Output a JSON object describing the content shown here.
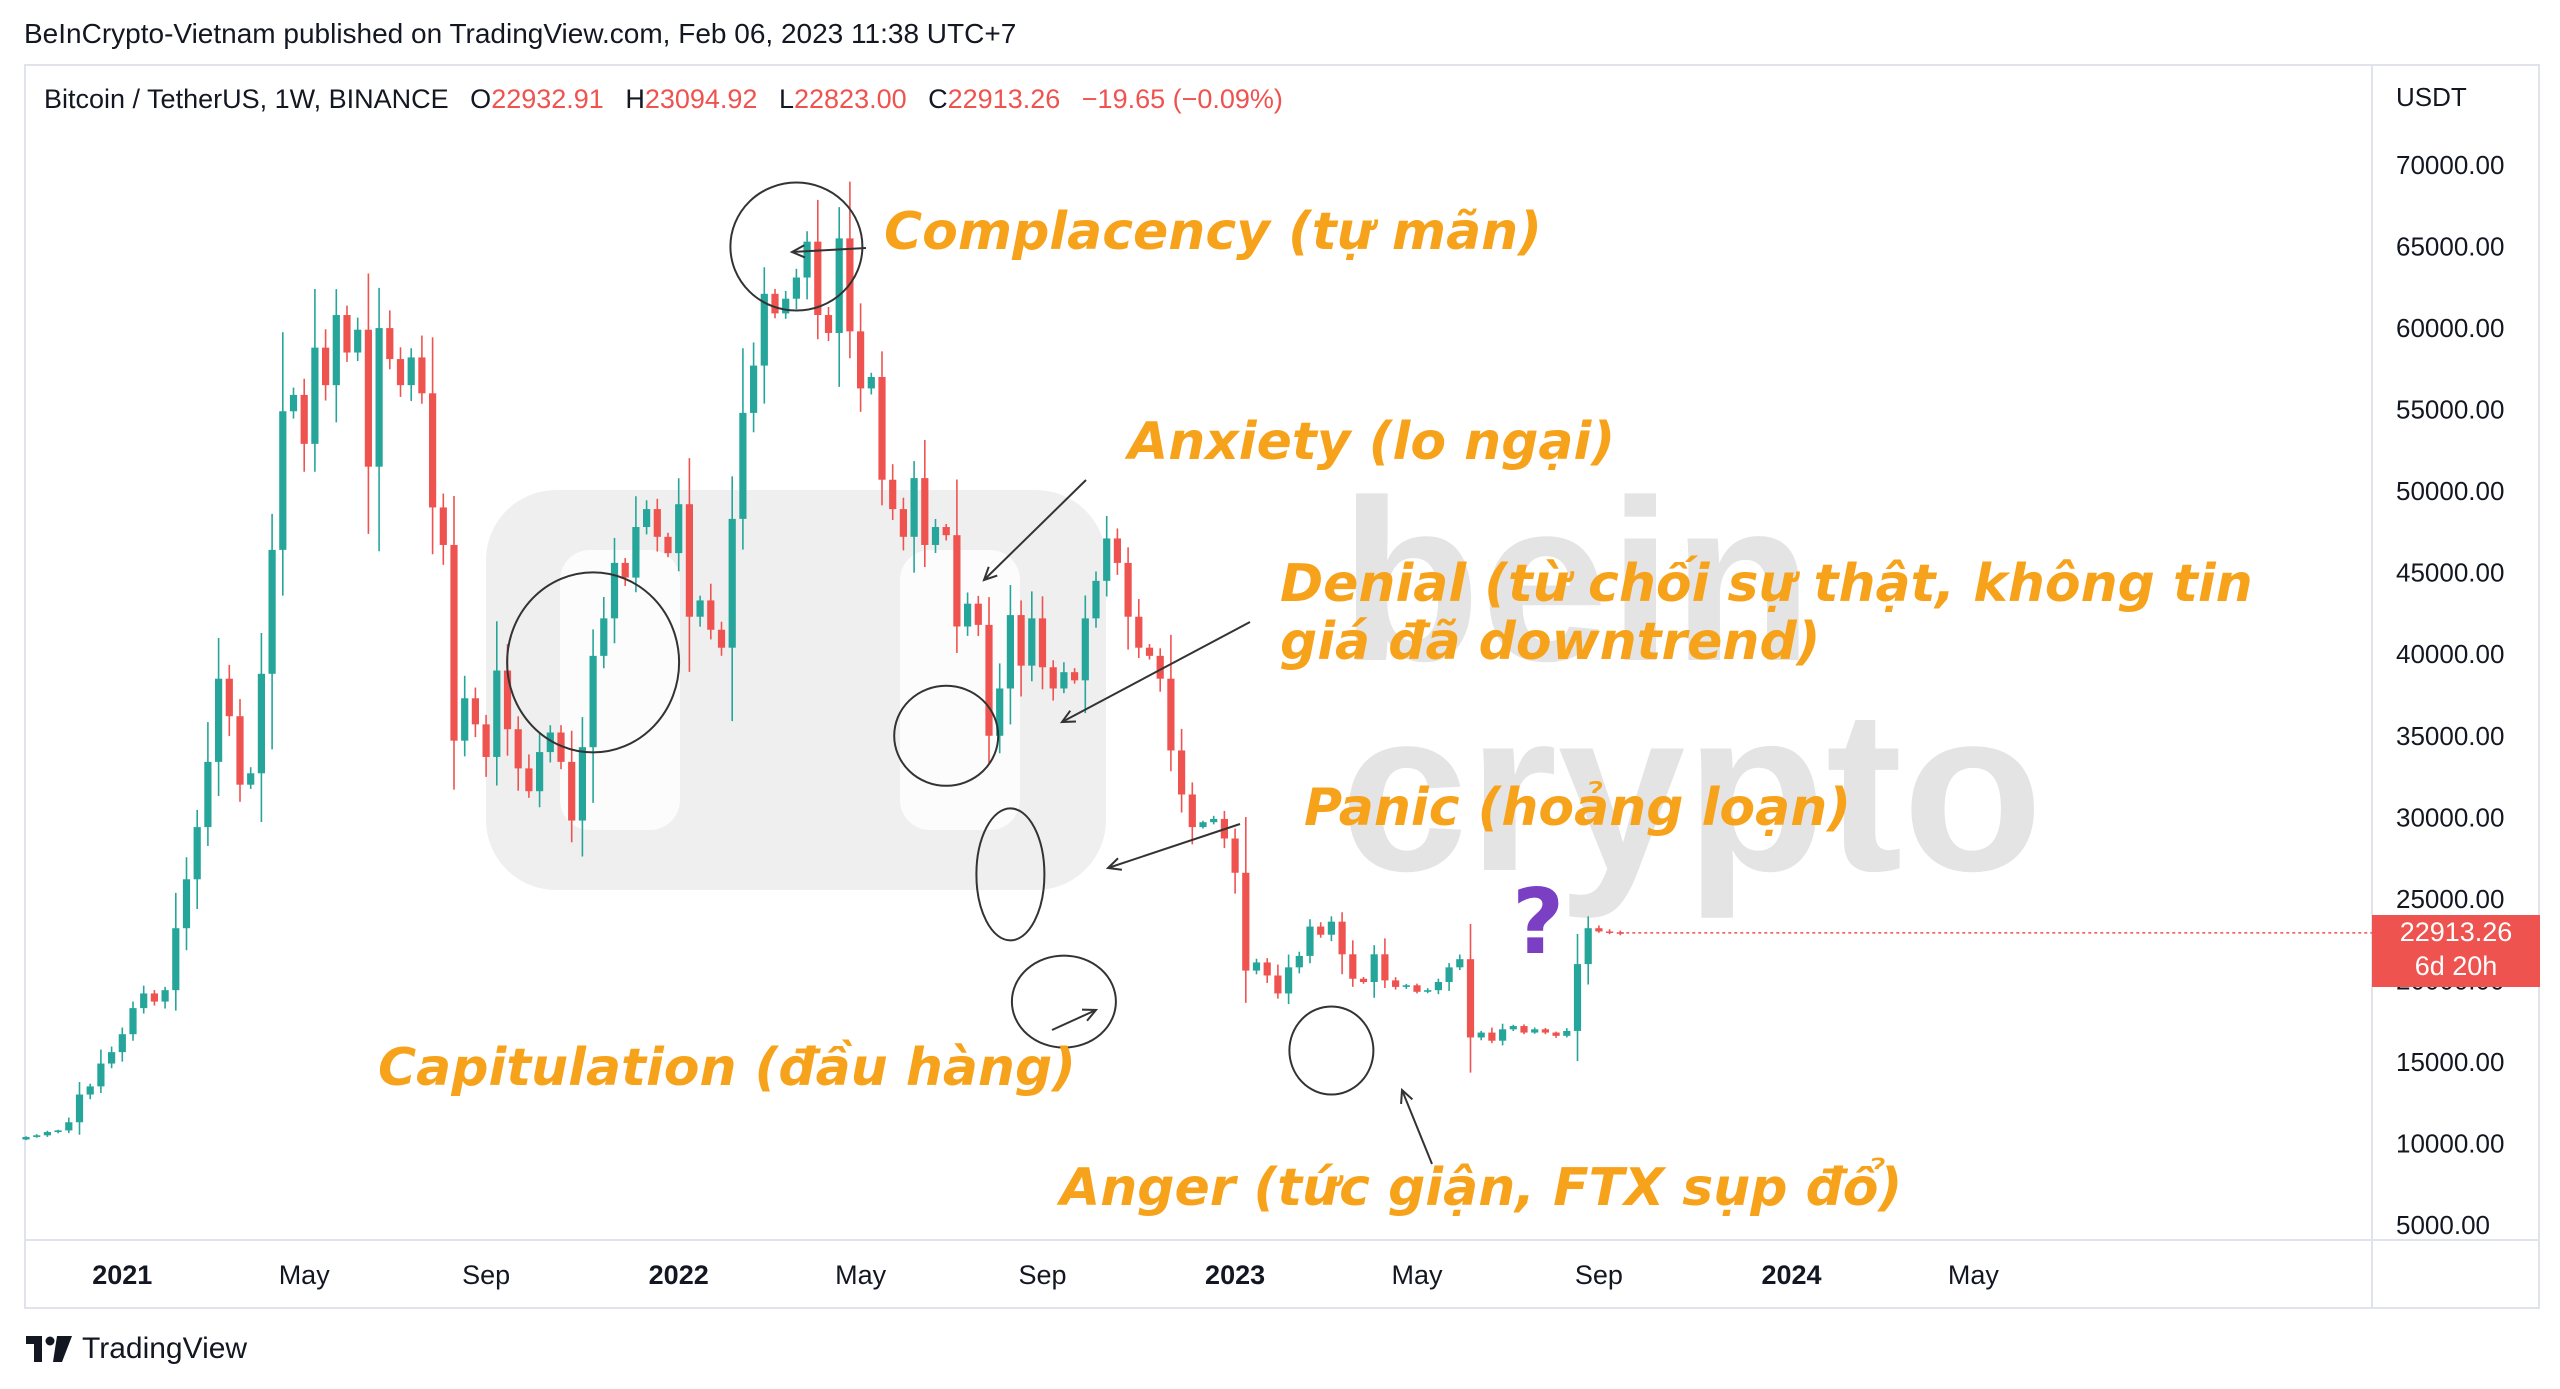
{
  "header": {
    "text": "BeInCrypto-Vietnam published on TradingView.com, Feb 06, 2023 11:38 UTC+7"
  },
  "legend": {
    "symbol": "Bitcoin / TetherUS, 1W, BINANCE",
    "o_label": "O",
    "o": "22932.91",
    "h_label": "H",
    "h": "23094.92",
    "l_label": "L",
    "l": "22823.00",
    "c_label": "C",
    "c": "22913.26",
    "change": "−19.65 (−0.09%)"
  },
  "price_tag": {
    "price": "22913.26",
    "countdown": "6d 20h"
  },
  "footer": {
    "brand": "TradingView"
  },
  "watermark": {
    "line1": "bein",
    "line2": "crypto"
  },
  "annotations": {
    "complacency": "Complacency (tự mãn)",
    "anxiety": "Anxiety (lo ngại)",
    "denial_line1": "Denial (từ chối sự thật, không tin",
    "denial_line2": "giá đã downtrend)",
    "panic": "Panic (hoảng loạn)",
    "capitulation": "Capitulation (đầu hàng)",
    "anger": "Anger (tức giận, FTX sụp đổ)",
    "question": "?"
  },
  "colors": {
    "up": "#26a69a",
    "down": "#ef5350",
    "annotation": "#f7a21b",
    "question": "#7b3fc4"
  },
  "chart_data": {
    "type": "candlestick",
    "title": "Bitcoin / TetherUS, 1W, BINANCE",
    "y_axis_unit": "USDT",
    "y_ticks": [
      5000,
      10000,
      15000,
      20000,
      25000,
      30000,
      35000,
      40000,
      45000,
      50000,
      55000,
      60000,
      65000,
      70000
    ],
    "y_tick_labels": [
      "5000.00",
      "10000.00",
      "15000.00",
      "20000.00",
      "25000.00",
      "30000.00",
      "35000.00",
      "40000.00",
      "45000.00",
      "50000.00",
      "55000.00",
      "60000.00",
      "65000.00",
      "70000.00"
    ],
    "ylim": [
      3500,
      73000
    ],
    "x_ticks": [
      {
        "label": "2021",
        "bold": true,
        "week": 9
      },
      {
        "label": "May",
        "bold": false,
        "week": 26
      },
      {
        "label": "Sep",
        "bold": false,
        "week": 43
      },
      {
        "label": "2022",
        "bold": true,
        "week": 61
      },
      {
        "label": "May",
        "bold": false,
        "week": 78
      },
      {
        "label": "Sep",
        "bold": false,
        "week": 95
      },
      {
        "label": "2023",
        "bold": true,
        "week": 113
      },
      {
        "label": "May",
        "bold": false,
        "week": 130
      },
      {
        "label": "Sep",
        "bold": false,
        "week": 147
      },
      {
        "label": "2024",
        "bold": true,
        "week": 165
      },
      {
        "label": "May",
        "bold": false,
        "week": 182
      }
    ],
    "grid": false,
    "closes": [
      10400,
      10500,
      10700,
      10800,
      11300,
      13000,
      13500,
      14900,
      15600,
      16700,
      18300,
      19200,
      18700,
      19400,
      23200,
      26200,
      29400,
      33400,
      38500,
      36200,
      32000,
      32700,
      38800,
      46400,
      54900,
      55900,
      52900,
      58800,
      56500,
      60800,
      58500,
      59900,
      51500,
      60000,
      58100,
      56500,
      58200,
      56000,
      49000,
      46700,
      34700,
      37300,
      35700,
      33700,
      39000,
      35400,
      33000,
      31600,
      34000,
      35200,
      33400,
      29800,
      34300,
      39900,
      42200,
      45600,
      44700,
      47800,
      48900,
      47200,
      46200,
      49200,
      42300,
      43300,
      41500,
      40400,
      48300,
      54800,
      57700,
      62100,
      60900,
      61800,
      63100,
      65300,
      60800,
      59700,
      65500,
      59800,
      56300,
      57000,
      50700,
      48900,
      47200,
      50800,
      46700,
      47800,
      47300,
      41700,
      43100,
      41800,
      35000,
      37900,
      42400,
      39300,
      42200,
      39200,
      37900,
      38900,
      38400,
      42200,
      44500,
      47100,
      45600,
      42300,
      40400,
      39900,
      38500,
      34100,
      31400,
      29400,
      29700,
      29900,
      28700,
      26600,
      20600,
      21100,
      20300,
      19200,
      20800,
      21500,
      23300,
      22800,
      23600,
      21600,
      20100,
      19900,
      21600,
      20000,
      19600,
      19700,
      19300,
      19400,
      19900,
      20800,
      21300,
      16500,
      16800,
      16300,
      17000,
      17200,
      16800,
      17000,
      16800,
      16600,
      16900,
      21000,
      23200,
      23000,
      22950,
      22913
    ],
    "x_index_note": "one weekly candle per entry, first candle ≈ mid-Oct 2020, last = week of Feb 06, 2023"
  }
}
